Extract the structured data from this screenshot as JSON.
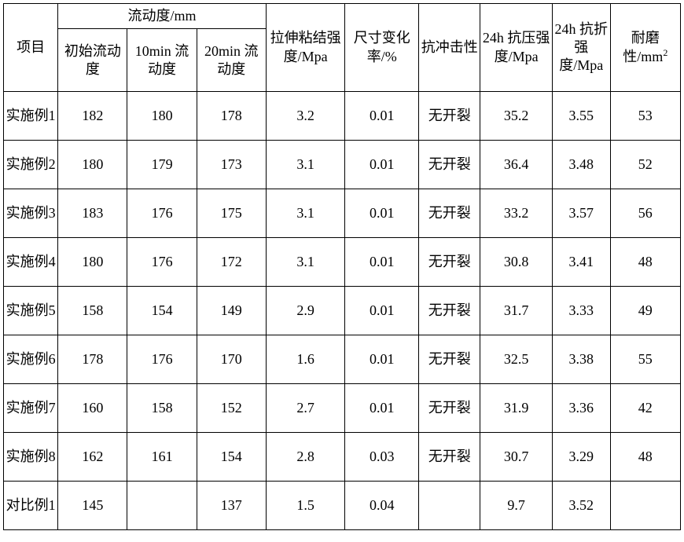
{
  "headers": {
    "project": "项目",
    "fluidity_group": "流动度/mm",
    "fluidity_initial": "初始流动度",
    "fluidity_10min": "10min 流动度",
    "fluidity_20min": "20min 流动度",
    "tensile": "拉伸粘结强度/Mpa",
    "dimension": "尺寸变化率/%",
    "impact": "抗冲击性",
    "compressive": "24h 抗压强度/Mpa",
    "flexural": "24h 抗折强度/Mpa",
    "wear_prefix": "耐磨性/mm",
    "wear_sup": "2"
  },
  "rows": [
    {
      "label": "实施例1",
      "f0": "182",
      "f10": "180",
      "f20": "178",
      "tens": "3.2",
      "dim": "0.01",
      "imp": "无开裂",
      "comp": "35.2",
      "flex": "3.55",
      "wear": "53"
    },
    {
      "label": "实施例2",
      "f0": "180",
      "f10": "179",
      "f20": "173",
      "tens": "3.1",
      "dim": "0.01",
      "imp": "无开裂",
      "comp": "36.4",
      "flex": "3.48",
      "wear": "52"
    },
    {
      "label": "实施例3",
      "f0": "183",
      "f10": "176",
      "f20": "175",
      "tens": "3.1",
      "dim": "0.01",
      "imp": "无开裂",
      "comp": "33.2",
      "flex": "3.57",
      "wear": "56"
    },
    {
      "label": "实施例4",
      "f0": "180",
      "f10": "176",
      "f20": "172",
      "tens": "3.1",
      "dim": "0.01",
      "imp": "无开裂",
      "comp": "30.8",
      "flex": "3.41",
      "wear": "48"
    },
    {
      "label": "实施例5",
      "f0": "158",
      "f10": "154",
      "f20": "149",
      "tens": "2.9",
      "dim": "0.01",
      "imp": "无开裂",
      "comp": "31.7",
      "flex": "3.33",
      "wear": "49"
    },
    {
      "label": "实施例6",
      "f0": "178",
      "f10": "176",
      "f20": "170",
      "tens": "1.6",
      "dim": "0.01",
      "imp": "无开裂",
      "comp": "32.5",
      "flex": "3.38",
      "wear": "55"
    },
    {
      "label": "实施例7",
      "f0": "160",
      "f10": "158",
      "f20": "152",
      "tens": "2.7",
      "dim": "0.01",
      "imp": "无开裂",
      "comp": "31.9",
      "flex": "3.36",
      "wear": "42"
    },
    {
      "label": "实施例8",
      "f0": "162",
      "f10": "161",
      "f20": "154",
      "tens": "2.8",
      "dim": "0.03",
      "imp": "无开裂",
      "comp": "30.7",
      "flex": "3.29",
      "wear": "48"
    },
    {
      "label": "对比例1",
      "f0": "145",
      "f10": "",
      "f20": "137",
      "tens": "1.5",
      "dim": "0.04",
      "imp": "",
      "comp": "9.7",
      "flex": "3.52",
      "wear": ""
    }
  ]
}
